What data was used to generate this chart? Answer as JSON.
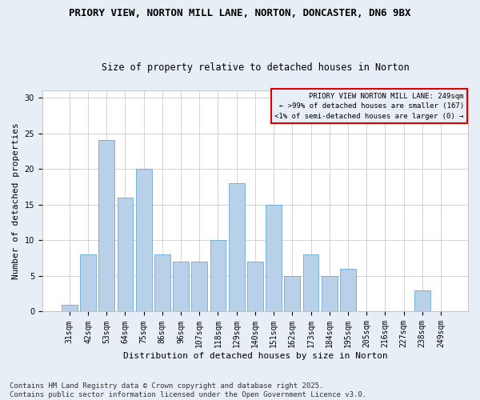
{
  "title_line1": "PRIORY VIEW, NORTON MILL LANE, NORTON, DONCASTER, DN6 9BX",
  "title_line2": "Size of property relative to detached houses in Norton",
  "xlabel": "Distribution of detached houses by size in Norton",
  "ylabel": "Number of detached properties",
  "categories": [
    "31sqm",
    "42sqm",
    "53sqm",
    "64sqm",
    "75sqm",
    "86sqm",
    "96sqm",
    "107sqm",
    "118sqm",
    "129sqm",
    "140sqm",
    "151sqm",
    "162sqm",
    "173sqm",
    "184sqm",
    "195sqm",
    "205sqm",
    "216sqm",
    "227sqm",
    "238sqm",
    "249sqm"
  ],
  "values": [
    1,
    8,
    24,
    16,
    20,
    8,
    7,
    7,
    10,
    18,
    7,
    15,
    5,
    8,
    5,
    6,
    0,
    0,
    0,
    3,
    0
  ],
  "bar_color": "#b8d0e8",
  "bar_edgecolor": "#6aaad4",
  "ylim": [
    0,
    31
  ],
  "yticks": [
    0,
    5,
    10,
    15,
    20,
    25,
    30
  ],
  "legend_title": "PRIORY VIEW NORTON MILL LANE: 249sqm",
  "legend_line2": "← >99% of detached houses are smaller (167)",
  "legend_line3": "<1% of semi-detached houses are larger (0) →",
  "legend_box_color": "#dd0000",
  "footer_line1": "Contains HM Land Registry data © Crown copyright and database right 2025.",
  "footer_line2": "Contains public sector information licensed under the Open Government Licence v3.0.",
  "fig_background_color": "#e8eef5",
  "plot_background_color": "#ffffff",
  "title_fontsize": 9,
  "subtitle_fontsize": 8.5,
  "axis_label_fontsize": 8,
  "tick_fontsize": 7,
  "legend_fontsize": 6.5,
  "footer_fontsize": 6.5,
  "grid_color": "#cccccc"
}
